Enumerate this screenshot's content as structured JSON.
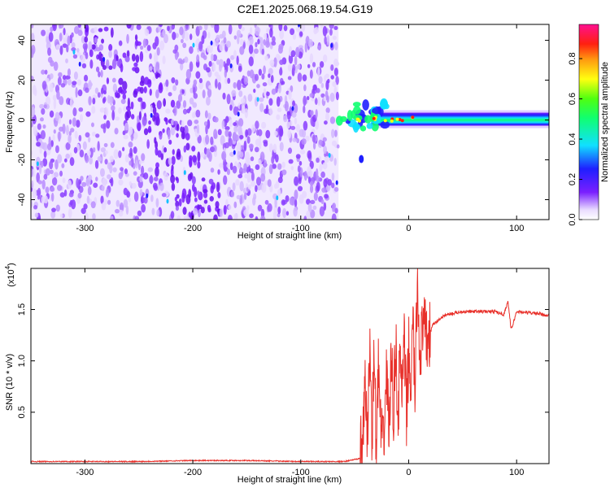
{
  "title": "C2E1.2025.068.19.54.G19",
  "colors": {
    "snr_line": "#e8302a",
    "axis": "#000000"
  },
  "chart_data": [
    {
      "type": "heatmap",
      "title": "",
      "xlabel": "Height of straight line (km)",
      "ylabel": "Frequency (Hz)",
      "xlim": [
        -350,
        130
      ],
      "ylim": [
        -50,
        48
      ],
      "xticks": [
        -300,
        -200,
        -100,
        0,
        100
      ],
      "xtick_labels": [
        "-300",
        "-200",
        "-100",
        "0",
        "100"
      ],
      "yticks": [
        -40,
        -20,
        0,
        20,
        40
      ],
      "ytick_labels": [
        "-40",
        "-20",
        "0",
        "20",
        "40"
      ],
      "colorbar": {
        "label": "Normalized spectral amplitude",
        "range": [
          0,
          0.97
        ],
        "ticks": [
          0.0,
          0.2,
          0.4,
          0.6,
          0.8
        ],
        "tick_labels": [
          "0.0",
          "0.2",
          "0.4",
          "0.6",
          "0.8"
        ],
        "colormap": "rainbow (white-violet-blue-cyan-green-yellow-orange-red-magenta)"
      },
      "features": {
        "noise_region_x": [
          -350,
          -65
        ],
        "dense_diagonal_band": {
          "from": [
            -280,
            45
          ],
          "to": [
            -190,
            -45
          ]
        },
        "signal_line": {
          "x": [
            -65,
            130
          ],
          "frequency_hz": 0,
          "peak_x_range": [
            -25,
            5
          ]
        }
      }
    },
    {
      "type": "line",
      "title": "",
      "xlabel": "Height of straight line (km)",
      "ylabel": "SNR (10 * v/v)",
      "y_multiplier": "(x10^4)",
      "y_multiplier_base": "(x10",
      "y_multiplier_exp": "4",
      "y_multiplier_close": ")",
      "xlim": [
        -350,
        130
      ],
      "ylim": [
        0,
        1.9
      ],
      "xticks": [
        -300,
        -200,
        -100,
        0,
        100
      ],
      "xtick_labels": [
        "-300",
        "-200",
        "-100",
        "0",
        "100"
      ],
      "yticks": [
        0.5,
        1.0,
        1.5
      ],
      "ytick_labels": [
        "0.5",
        "1.0",
        "1.5"
      ],
      "series": [
        {
          "x": [
            -350,
            -300,
            -250,
            -200,
            -150,
            -100,
            -60,
            -45,
            -42,
            -40,
            -38,
            -36,
            -34,
            -32,
            -30,
            -28,
            -26,
            -24,
            -22,
            -20,
            -18,
            -16,
            -14,
            -12,
            -10,
            -8,
            -6,
            -4,
            -2,
            0,
            2,
            4,
            6,
            8,
            10,
            14,
            18,
            22,
            26,
            30,
            35,
            40,
            50,
            60,
            70,
            80,
            88,
            92,
            95,
            100,
            110,
            120,
            130
          ],
          "values": [
            0.02,
            0.02,
            0.02,
            0.03,
            0.03,
            0.02,
            0.02,
            0.05,
            0.35,
            0.75,
            0.2,
            1.2,
            0.3,
            1.05,
            0.15,
            0.95,
            0.35,
            0.1,
            0.55,
            0.9,
            0.3,
            1.05,
            0.5,
            1.25,
            0.4,
            1.05,
            0.7,
            1.15,
            0.45,
            1.1,
            0.75,
            1.35,
            0.65,
            1.85,
            1.1,
            1.3,
            1.2,
            1.35,
            1.38,
            1.42,
            1.45,
            1.46,
            1.48,
            1.48,
            1.48,
            1.48,
            1.45,
            1.58,
            1.3,
            1.48,
            1.47,
            1.46,
            1.44
          ]
        }
      ]
    }
  ]
}
